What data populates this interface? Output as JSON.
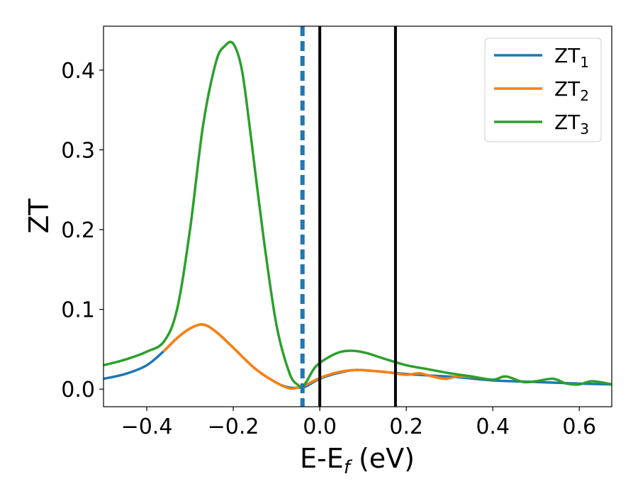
{
  "chart_data": {
    "type": "line",
    "xlabel_main": "E-E",
    "xlabel_sub": "f",
    "xlabel_tail": " (eV)",
    "ylabel": "ZT",
    "xlim": [
      -0.5,
      0.675
    ],
    "ylim": [
      -0.022,
      0.455
    ],
    "xticks": [
      {
        "value": -0.4,
        "label": "−0.4"
      },
      {
        "value": -0.2,
        "label": "−0.2"
      },
      {
        "value": 0.0,
        "label": "0.0"
      },
      {
        "value": 0.2,
        "label": "0.2"
      },
      {
        "value": 0.4,
        "label": "0.4"
      },
      {
        "value": 0.6,
        "label": "0.6"
      }
    ],
    "yticks": [
      {
        "value": 0.0,
        "label": "0.0"
      },
      {
        "value": 0.1,
        "label": "0.1"
      },
      {
        "value": 0.2,
        "label": "0.2"
      },
      {
        "value": 0.3,
        "label": "0.3"
      },
      {
        "value": 0.4,
        "label": "0.4"
      }
    ],
    "grid": false,
    "legend_placement": "top-right",
    "vlines": [
      {
        "x": -0.04,
        "color": "#1f77b4",
        "style": "dashed"
      },
      {
        "x": 0.0,
        "color": "#000000",
        "style": "solid"
      },
      {
        "x": 0.175,
        "color": "#000000",
        "style": "solid"
      }
    ],
    "series": [
      {
        "name": "ZT",
        "sub": "1",
        "color": "#1f77b4",
        "x": [
          -0.5,
          -0.45,
          -0.4,
          -0.36,
          -0.33,
          -0.3,
          -0.27,
          -0.24,
          -0.2,
          -0.15,
          -0.1,
          -0.07,
          -0.05,
          -0.04,
          -0.03,
          0.0,
          0.04,
          0.08,
          0.12,
          0.16,
          0.2,
          0.26,
          0.32,
          0.4,
          0.5,
          0.6,
          0.675
        ],
        "y": [
          0.013,
          0.019,
          0.03,
          0.048,
          0.064,
          0.076,
          0.081,
          0.072,
          0.052,
          0.026,
          0.008,
          0.002,
          0.002,
          0.002,
          0.004,
          0.013,
          0.02,
          0.024,
          0.023,
          0.021,
          0.019,
          0.017,
          0.015,
          0.011,
          0.009,
          0.007,
          0.006
        ]
      },
      {
        "name": "ZT",
        "sub": "2",
        "color": "#ff7f0e",
        "x": [
          -0.36,
          -0.33,
          -0.3,
          -0.27,
          -0.24,
          -0.2,
          -0.15,
          -0.1,
          -0.07,
          -0.05,
          -0.03,
          0.0,
          0.04,
          0.08,
          0.12,
          0.16,
          0.2,
          0.23,
          0.26,
          0.29,
          0.32,
          0.36
        ],
        "y": [
          0.048,
          0.064,
          0.076,
          0.081,
          0.072,
          0.052,
          0.026,
          0.008,
          0.001,
          0.002,
          0.006,
          0.014,
          0.021,
          0.024,
          0.023,
          0.021,
          0.018,
          0.02,
          0.016,
          0.013,
          0.016,
          0.015
        ]
      },
      {
        "name": "ZT",
        "sub": "3",
        "color": "#2ca02c",
        "x": [
          -0.5,
          -0.45,
          -0.4,
          -0.36,
          -0.33,
          -0.3,
          -0.27,
          -0.24,
          -0.22,
          -0.2,
          -0.18,
          -0.16,
          -0.13,
          -0.1,
          -0.07,
          -0.05,
          -0.04,
          -0.03,
          -0.01,
          0.02,
          0.05,
          0.08,
          0.11,
          0.15,
          0.2,
          0.25,
          0.3,
          0.35,
          0.4,
          0.43,
          0.47,
          0.5,
          0.54,
          0.57,
          0.6,
          0.63,
          0.675
        ],
        "y": [
          0.03,
          0.037,
          0.047,
          0.06,
          0.1,
          0.2,
          0.33,
          0.41,
          0.43,
          0.433,
          0.4,
          0.32,
          0.19,
          0.08,
          0.02,
          0.005,
          0.003,
          0.01,
          0.028,
          0.04,
          0.047,
          0.048,
          0.045,
          0.038,
          0.03,
          0.025,
          0.02,
          0.016,
          0.012,
          0.016,
          0.009,
          0.01,
          0.013,
          0.007,
          0.006,
          0.01,
          0.006
        ]
      }
    ]
  }
}
